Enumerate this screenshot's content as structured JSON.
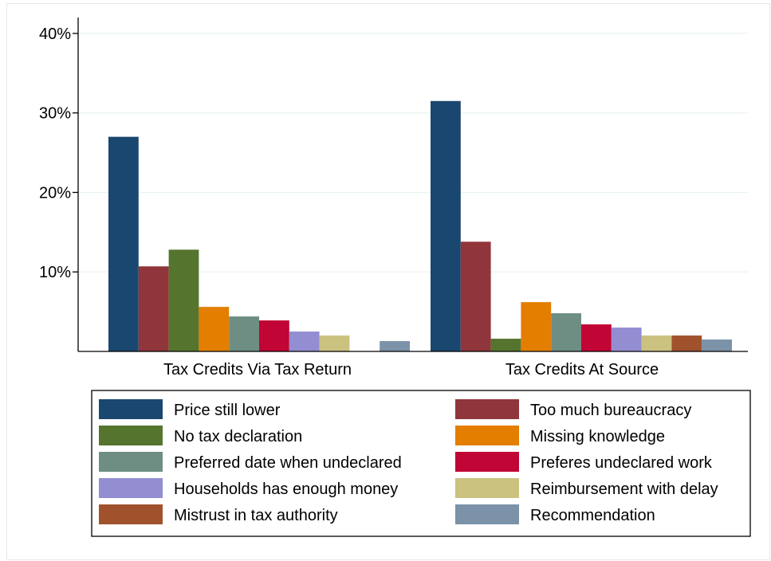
{
  "chart_data": {
    "type": "bar",
    "categories": [
      "Tax Credits Via Tax Return",
      "Tax Credits At Source"
    ],
    "y_ticks": [
      {
        "value": 10,
        "label": "10%"
      },
      {
        "value": 20,
        "label": "20%"
      },
      {
        "value": 30,
        "label": "30%"
      },
      {
        "value": 40,
        "label": "40%"
      }
    ],
    "ylim": [
      0,
      42
    ],
    "grid": true,
    "legend_position": "bottom",
    "series": [
      {
        "name": "Price still lower",
        "color": "#1a476f",
        "values": [
          27.0,
          31.5
        ]
      },
      {
        "name": "Too much bureaucracy",
        "color": "#90353b",
        "values": [
          10.7,
          13.8
        ]
      },
      {
        "name": "No tax declaration",
        "color": "#55752f",
        "values": [
          12.8,
          1.6
        ]
      },
      {
        "name": "Missing knowledge",
        "color": "#e37e00",
        "values": [
          5.6,
          6.2
        ]
      },
      {
        "name": "Preferred date when undeclared",
        "color": "#6e8e84",
        "values": [
          4.4,
          4.8
        ]
      },
      {
        "name": "Preferes undeclared work",
        "color": "#c10534",
        "values": [
          3.9,
          3.4
        ]
      },
      {
        "name": "Households has enough money",
        "color": "#938dd2",
        "values": [
          2.5,
          3.0
        ]
      },
      {
        "name": "Reimbursement with delay",
        "color": "#cac27e",
        "values": [
          2.0,
          2.0
        ]
      },
      {
        "name": "Mistrust in tax authority",
        "color": "#a0522d",
        "values": [
          0,
          2.0
        ]
      },
      {
        "name": "Recommendation",
        "color": "#7b92a8",
        "values": [
          1.3,
          1.5
        ]
      }
    ]
  }
}
